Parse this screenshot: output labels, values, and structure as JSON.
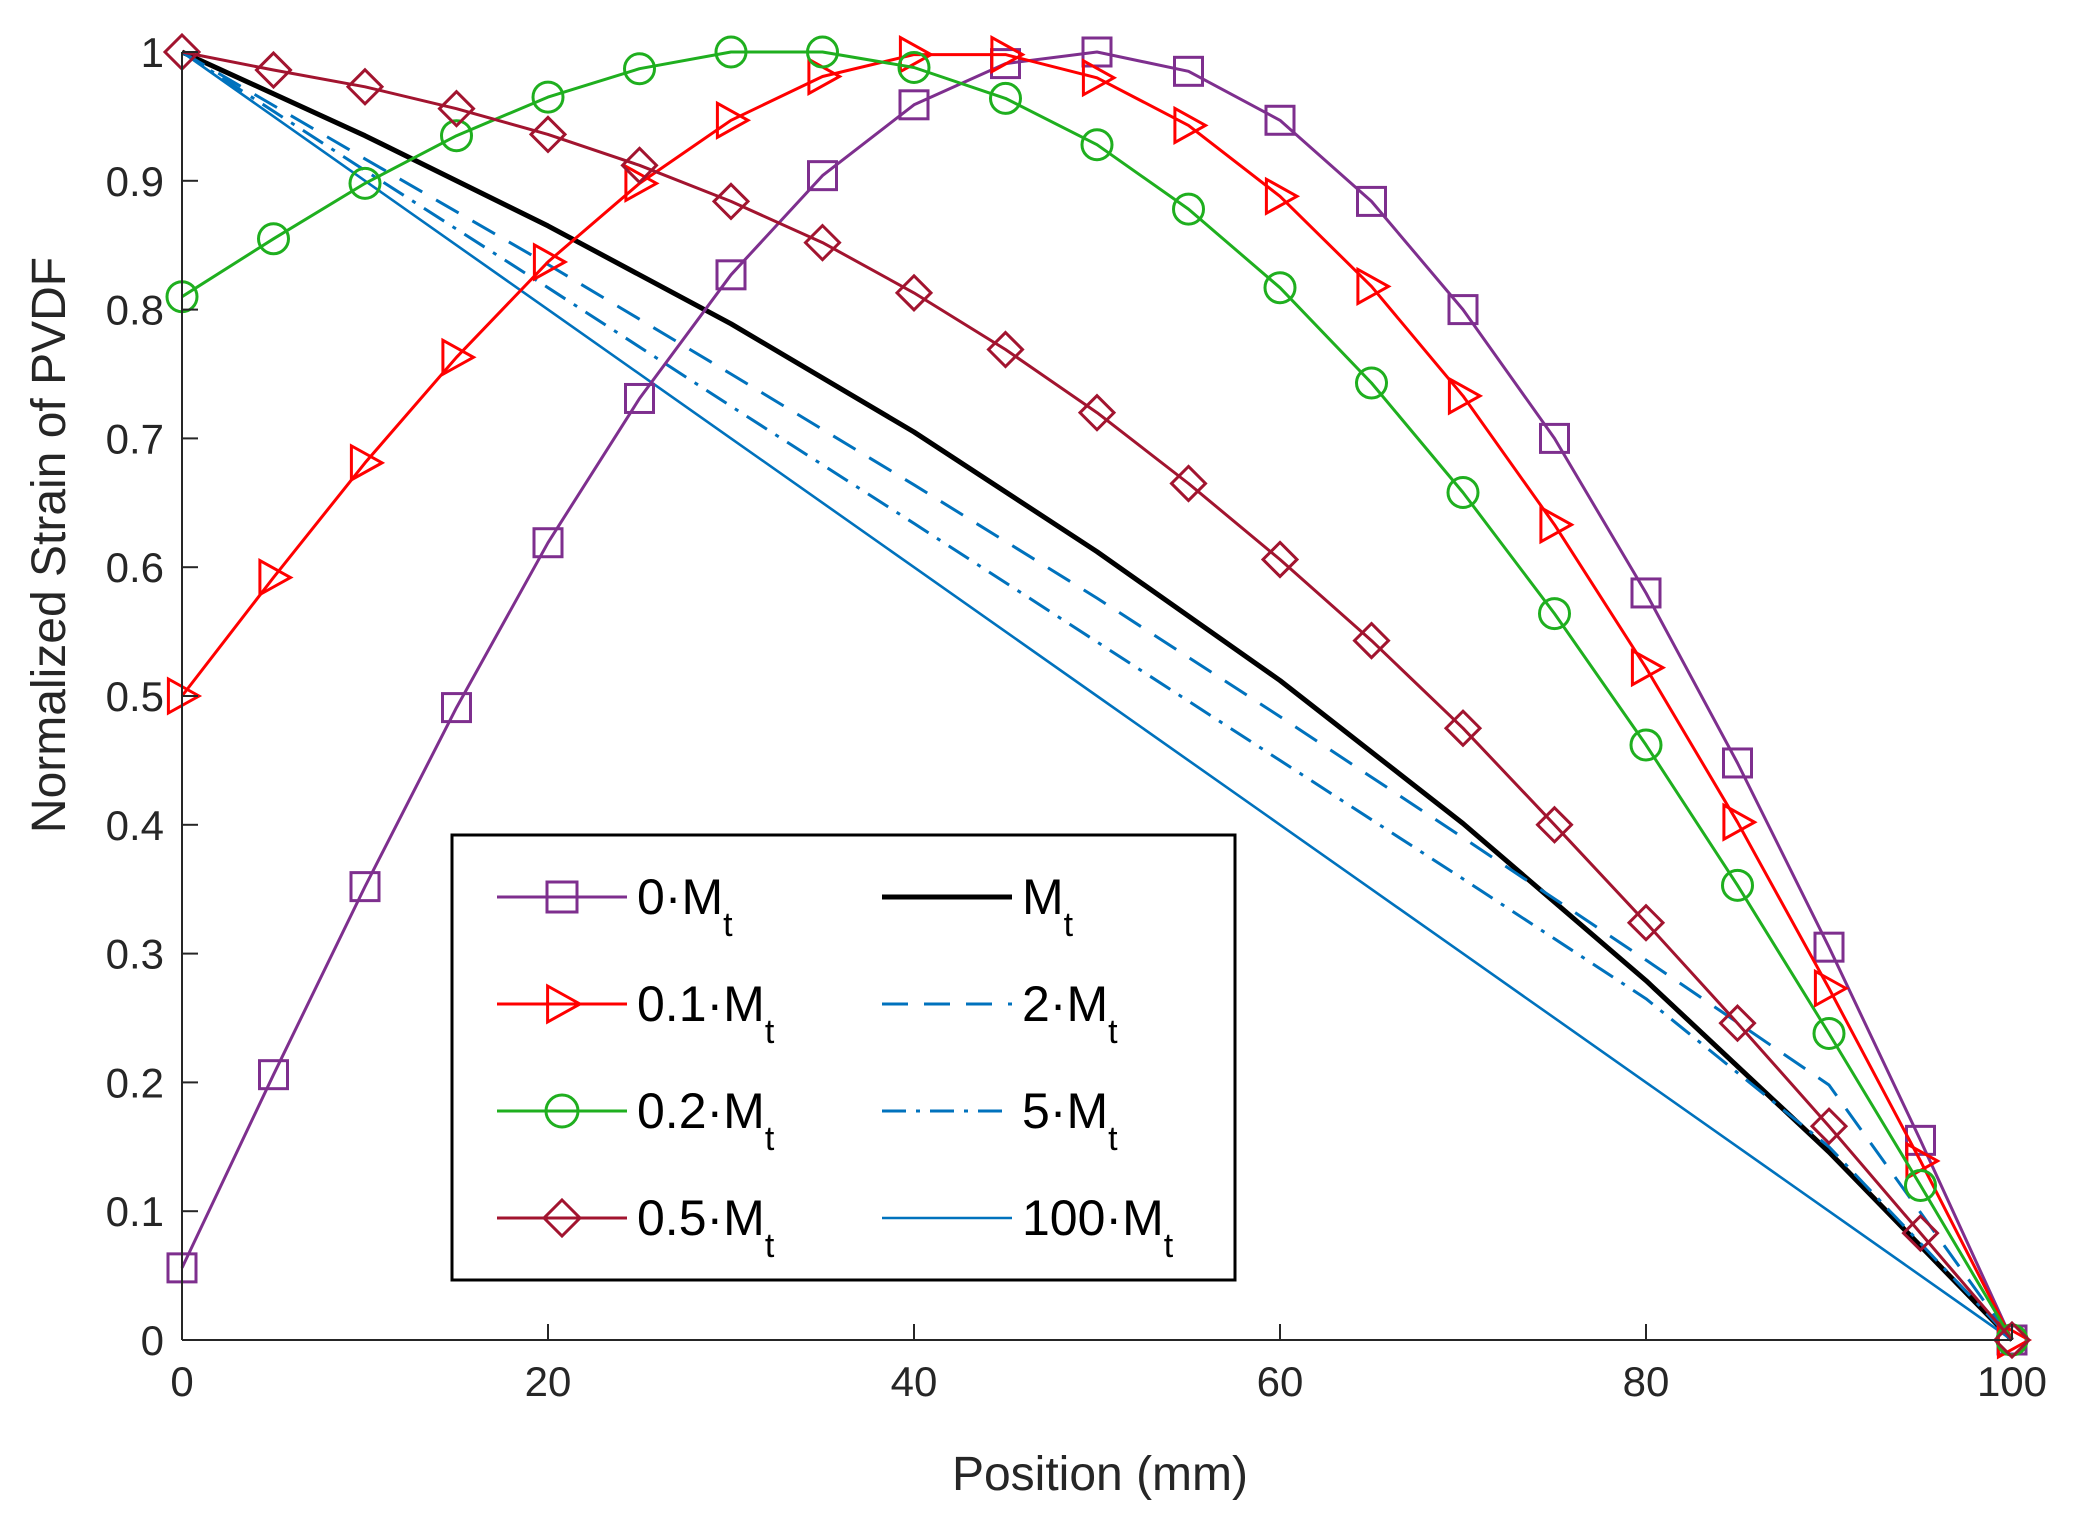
{
  "chart_data": {
    "type": "line",
    "title": "",
    "xlabel": "Position (mm)",
    "ylabel": "Normalized Strain of PVDF",
    "xlim": [
      0,
      100
    ],
    "ylim": [
      0,
      1
    ],
    "x_ticks": [
      0,
      20,
      40,
      60,
      80,
      100
    ],
    "x_tick_labels": [
      "0",
      "20",
      "40",
      "60",
      "80",
      "100"
    ],
    "y_ticks": [
      0,
      0.1,
      0.2,
      0.3,
      0.4,
      0.5,
      0.6,
      0.7,
      0.8,
      0.9,
      1
    ],
    "y_tick_labels": [
      "0",
      "0.1",
      "0.2",
      "0.3",
      "0.4",
      "0.5",
      "0.6",
      "0.7",
      "0.8",
      "0.9",
      "1"
    ],
    "grid": false,
    "legend_position": "bottom-center",
    "series": [
      {
        "name": "0·Mt",
        "label_main": "0·M",
        "label_sub": "t",
        "color": "#7E2F8E",
        "line": "solid",
        "marker": "square",
        "x": [
          0,
          5,
          10,
          15,
          20,
          25,
          30,
          35,
          40,
          45,
          50,
          55,
          60,
          65,
          70,
          75,
          80,
          85,
          90,
          95,
          100
        ],
        "values": [
          0.056,
          0.206,
          0.352,
          0.491,
          0.619,
          0.731,
          0.827,
          0.904,
          0.959,
          0.991,
          1.0,
          0.985,
          0.947,
          0.884,
          0.8,
          0.7,
          0.58,
          0.448,
          0.305,
          0.155,
          0
        ]
      },
      {
        "name": "0.1·Mt",
        "label_main": "0.1·M",
        "label_sub": "t",
        "color": "#FF0000",
        "line": "solid",
        "marker": "triangle-right",
        "x": [
          0,
          5,
          10,
          15,
          20,
          25,
          30,
          35,
          40,
          45,
          50,
          55,
          60,
          65,
          70,
          75,
          80,
          85,
          90,
          95,
          100
        ],
        "values": [
          0.5,
          0.592,
          0.681,
          0.763,
          0.837,
          0.898,
          0.947,
          0.981,
          0.998,
          0.998,
          0.98,
          0.943,
          0.888,
          0.818,
          0.733,
          0.633,
          0.522,
          0.402,
          0.273,
          0.139,
          0
        ]
      },
      {
        "name": "0.2·Mt",
        "label_main": "0.2·M",
        "label_sub": "t",
        "color": "#1FAF1F",
        "line": "solid",
        "marker": "circle",
        "x": [
          0,
          5,
          10,
          15,
          20,
          25,
          30,
          35,
          40,
          45,
          50,
          55,
          60,
          65,
          70,
          75,
          80,
          85,
          90,
          95,
          100
        ],
        "values": [
          0.81,
          0.855,
          0.898,
          0.935,
          0.965,
          0.987,
          1.0,
          1.0,
          0.988,
          0.964,
          0.928,
          0.878,
          0.817,
          0.743,
          0.658,
          0.564,
          0.462,
          0.353,
          0.238,
          0.12,
          0
        ]
      },
      {
        "name": "0.5·Mt",
        "label_main": "0.5·M",
        "label_sub": "t",
        "color": "#A2142F",
        "line": "solid",
        "marker": "diamond",
        "x": [
          0,
          5,
          10,
          15,
          20,
          25,
          30,
          35,
          40,
          45,
          50,
          55,
          60,
          65,
          70,
          75,
          80,
          85,
          90,
          95,
          100
        ],
        "values": [
          1.0,
          0.986,
          0.973,
          0.956,
          0.936,
          0.912,
          0.884,
          0.852,
          0.813,
          0.769,
          0.72,
          0.665,
          0.606,
          0.543,
          0.475,
          0.4,
          0.324,
          0.246,
          0.166,
          0.083,
          0
        ]
      },
      {
        "name": "Mt",
        "label_main": "M",
        "label_sub": "t",
        "color": "#000000",
        "line": "solid-thick",
        "marker": "none",
        "x": [
          0,
          10,
          20,
          30,
          40,
          50,
          60,
          70,
          80,
          90,
          100
        ],
        "values": [
          1.0,
          0.935,
          0.865,
          0.789,
          0.705,
          0.612,
          0.512,
          0.401,
          0.279,
          0.146,
          0
        ]
      },
      {
        "name": "2·Mt",
        "label_main": "2·M",
        "label_sub": "t",
        "color": "#0072BD",
        "line": "dashed",
        "marker": "none",
        "x": [
          0,
          10,
          20,
          30,
          40,
          50,
          60,
          70,
          80,
          90,
          100
        ],
        "values": [
          1.0,
          0.917,
          0.835,
          0.75,
          0.664,
          0.576,
          0.484,
          0.39,
          0.295,
          0.198,
          0
        ]
      },
      {
        "name": "5·Mt",
        "label_main": "5·M",
        "label_sub": "t",
        "color": "#0072BD",
        "line": "dashdot",
        "marker": "none",
        "x": [
          0,
          10,
          20,
          30,
          40,
          50,
          60,
          70,
          80,
          90,
          100
        ],
        "values": [
          1.0,
          0.908,
          0.817,
          0.725,
          0.634,
          0.542,
          0.45,
          0.358,
          0.265,
          0.15,
          0
        ]
      },
      {
        "name": "100·Mt",
        "label_main": "100·M",
        "label_sub": "t",
        "color": "#0072BD",
        "line": "solid-thin",
        "marker": "none",
        "x": [
          0,
          10,
          20,
          30,
          40,
          50,
          60,
          70,
          80,
          90,
          100
        ],
        "values": [
          1.0,
          0.9,
          0.8,
          0.7,
          0.6,
          0.5,
          0.4,
          0.3,
          0.2,
          0.1,
          0
        ]
      }
    ],
    "legend_order": [
      "0·Mt",
      "Mt",
      "0.1·Mt",
      "2·Mt",
      "0.2·Mt",
      "5·Mt",
      "0.5·Mt",
      "100·Mt"
    ]
  }
}
